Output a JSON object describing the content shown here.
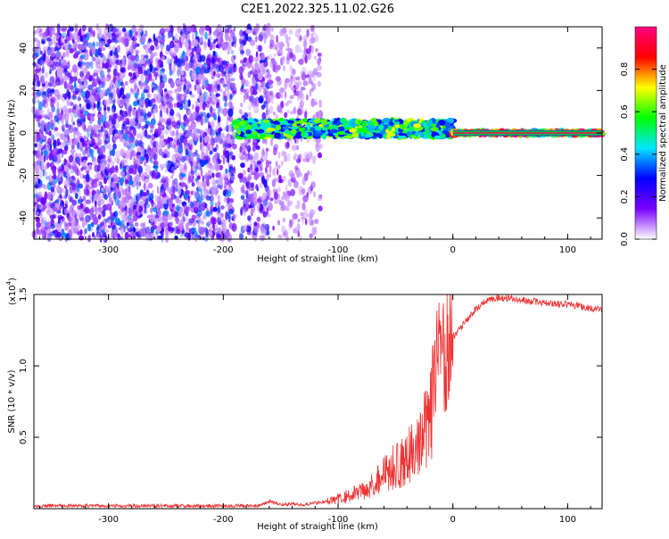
{
  "figure": {
    "title": "C2E1.2022.325.11.02.G26"
  },
  "chart_data": [
    {
      "type": "heatmap",
      "title": "C2E1.2022.325.11.02.G26",
      "xlabel": "Height of straight line (km)",
      "ylabel": "Frequency (Hz)",
      "xlim": [
        -365,
        130
      ],
      "ylim": [
        -50,
        50
      ],
      "x_ticks": [
        -300,
        -200,
        -100,
        0,
        100
      ],
      "x_tick_labels": [
        "-300",
        "-200",
        "-100",
        "0",
        "100"
      ],
      "y_ticks": [
        -40,
        -20,
        0,
        20,
        40
      ],
      "y_tick_labels": [
        "-40",
        "-20",
        "0",
        "20",
        "40"
      ],
      "colorbar": {
        "label": "Normalized spectral amplitude",
        "range": [
          0,
          1
        ],
        "ticks": [
          0.0,
          0.2,
          0.4,
          0.6,
          0.8
        ],
        "tick_labels": [
          "0.0",
          "0.2",
          "0.4",
          "0.6",
          "0.8"
        ],
        "colormap": [
          "#ffffff",
          "#7b00ff",
          "#0000ff",
          "#00e5ff",
          "#00ff00",
          "#ffff00",
          "#ff0000",
          "#ff0080"
        ]
      },
      "features": [
        {
          "kind": "noise",
          "x_range": [
            -365,
            -190
          ],
          "y_range": [
            -50,
            50
          ],
          "level": 0.15
        },
        {
          "kind": "noise",
          "x_range": [
            -185,
            -160
          ],
          "y_range": [
            -50,
            50
          ],
          "level": 0.12
        },
        {
          "kind": "noise",
          "x_range": [
            -160,
            -115
          ],
          "y_range": [
            -50,
            50
          ],
          "level": 0.05
        },
        {
          "kind": "signal",
          "x_range": [
            -190,
            0
          ],
          "frequency_hz": 2,
          "spread_hz": 4,
          "level": 0.6
        },
        {
          "kind": "signal",
          "x_range": [
            0,
            130
          ],
          "frequency_hz": 0,
          "spread_hz": 1,
          "level": 0.9
        }
      ],
      "grid": false
    },
    {
      "type": "line",
      "title": "",
      "xlabel": "Height of straight line (km)",
      "ylabel": "SNR (10 * v/v)",
      "y_multiplier_label": "(x10",
      "y_multiplier_exp": "4",
      "y_multiplier_close": ")",
      "xlim": [
        -365,
        130
      ],
      "ylim": [
        0,
        1.5
      ],
      "x_ticks": [
        -300,
        -200,
        -100,
        0,
        100
      ],
      "x_tick_labels": [
        "-300",
        "-200",
        "-100",
        "0",
        "100"
      ],
      "y_ticks": [
        0.5,
        1.0,
        1.5
      ],
      "y_tick_labels": [
        "0.5",
        "1.0",
        "1.5"
      ],
      "series": [
        {
          "color": "#ee3333",
          "x": [
            -365,
            -300,
            -250,
            -200,
            -170,
            -160,
            -150,
            -130,
            -110,
            -100,
            -90,
            -80,
            -70,
            -60,
            -50,
            -40,
            -30,
            -20,
            -15,
            -10,
            -5,
            0,
            10,
            20,
            30,
            40,
            60,
            80,
            100,
            110,
            120,
            130
          ],
          "y": [
            0.02,
            0.02,
            0.02,
            0.02,
            0.02,
            0.05,
            0.03,
            0.03,
            0.05,
            0.07,
            0.09,
            0.13,
            0.17,
            0.25,
            0.3,
            0.35,
            0.45,
            0.6,
            0.9,
            1.08,
            1.15,
            1.2,
            1.3,
            1.4,
            1.46,
            1.48,
            1.46,
            1.44,
            1.43,
            1.42,
            1.4,
            1.39
          ]
        }
      ],
      "grid": false
    }
  ]
}
